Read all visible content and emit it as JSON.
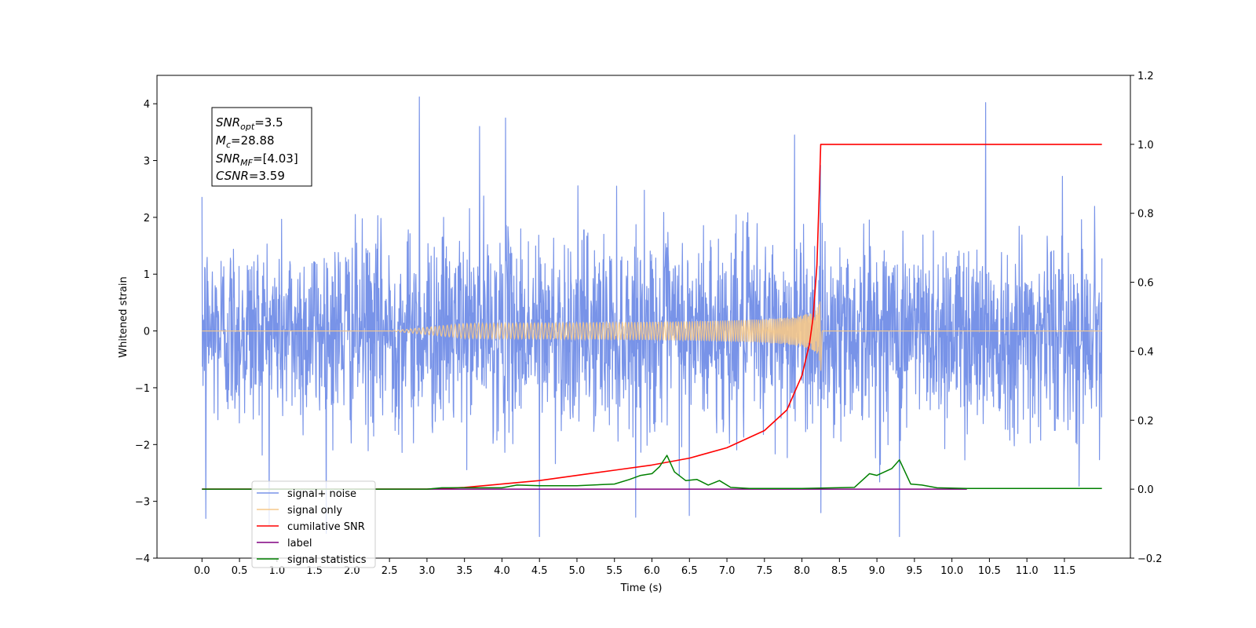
{
  "chart_data": {
    "type": "line",
    "xlabel": "Time (s)",
    "ylabel": "Whitened strain",
    "xlim": [
      -0.6,
      12.38
    ],
    "ylim": [
      -4,
      4.5
    ],
    "y2lim": [
      -0.2,
      1.2
    ],
    "x_ticks": [
      "0.0",
      "0.5",
      "1.0",
      "1.5",
      "2.0",
      "2.5",
      "3.0",
      "3.5",
      "4.0",
      "4.5",
      "5.0",
      "5.5",
      "6.0",
      "6.5",
      "7.0",
      "7.5",
      "8.0",
      "8.5",
      "9.0",
      "9.5",
      "10.0",
      "10.5",
      "11.0",
      "11.5"
    ],
    "y_ticks": [
      "4",
      "3",
      "2",
      "1",
      "0",
      "−1",
      "−2",
      "−3",
      "−4"
    ],
    "y2_ticks": [
      "1.2",
      "1.0",
      "0.8",
      "0.6",
      "0.4",
      "0.2",
      "0.0",
      "−0.2"
    ],
    "grid": false,
    "legend_position": "lower-left",
    "annotation": {
      "snr_opt": {
        "label": "SNR",
        "sub": "opt",
        "value": "=3.5"
      },
      "mc": {
        "label": "M",
        "sub": "c",
        "value": "=28.88"
      },
      "snr_mf": {
        "label": "SNR",
        "sub": "MF",
        "value": "=[4.03]"
      },
      "csnr": {
        "label": "CSNR",
        "sub": "",
        "value": "=3.59"
      }
    },
    "series": [
      {
        "name": "signal+ noise",
        "color": "#7893e8",
        "axis": "left",
        "x_range": [
          0,
          12
        ],
        "rms": 0.85,
        "max": 4.12,
        "min": -3.62
      },
      {
        "name": "signal only",
        "color": "#f6c98a",
        "axis": "left",
        "x_range": [
          0,
          12
        ],
        "chirp_end": 8.25,
        "peak_amplitude": 0.78
      },
      {
        "name": "cumilative SNR",
        "color": "#ff0000",
        "axis": "right",
        "x": [
          0,
          3,
          3.5,
          4,
          4.5,
          5,
          5.5,
          6,
          6.5,
          7,
          7.5,
          7.8,
          8.0,
          8.1,
          8.15,
          8.2,
          8.23,
          8.25,
          12
        ],
        "y": [
          0,
          0,
          0.005,
          0.015,
          0.025,
          0.04,
          0.055,
          0.07,
          0.09,
          0.12,
          0.17,
          0.23,
          0.33,
          0.42,
          0.5,
          0.65,
          0.85,
          1.0,
          1.0
        ]
      },
      {
        "name": "label",
        "color": "#800080",
        "axis": "right",
        "x": [
          0,
          10.2
        ],
        "y": [
          0,
          0
        ]
      },
      {
        "name": "signal statistics",
        "color": "#008000",
        "axis": "right",
        "x": [
          0,
          3.0,
          3.2,
          4.0,
          4.2,
          4.5,
          5.0,
          5.5,
          5.7,
          5.85,
          6.0,
          6.1,
          6.2,
          6.3,
          6.45,
          6.6,
          6.75,
          6.9,
          7.05,
          7.3,
          8.0,
          8.7,
          8.9,
          9.0,
          9.2,
          9.3,
          9.45,
          9.6,
          9.8,
          10.2,
          12
        ],
        "y": [
          0,
          0,
          0.004,
          0.004,
          0.012,
          0.01,
          0.01,
          0.015,
          0.028,
          0.04,
          0.045,
          0.065,
          0.098,
          0.05,
          0.025,
          0.028,
          0.012,
          0.025,
          0.005,
          0.002,
          0.002,
          0.005,
          0.045,
          0.04,
          0.06,
          0.085,
          0.015,
          0.012,
          0.004,
          0.002,
          0.002
        ]
      }
    ]
  }
}
